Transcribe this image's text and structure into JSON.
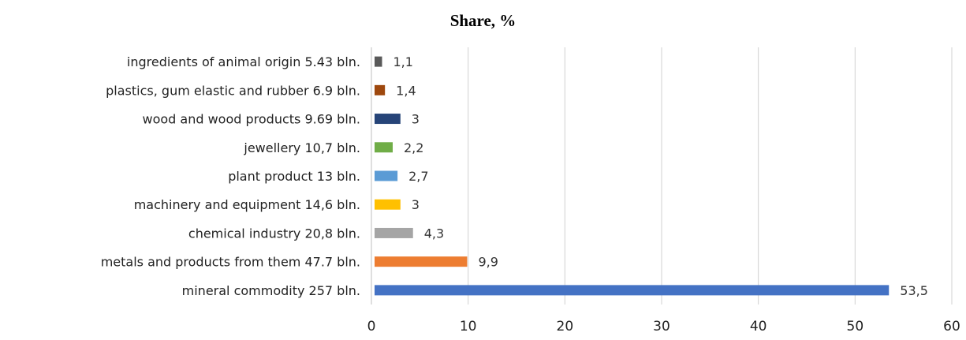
{
  "chart_data": {
    "type": "bar",
    "orientation": "horizontal",
    "title": "Share, %",
    "xlim": [
      0,
      60
    ],
    "xticks": [
      0,
      10,
      20,
      30,
      40,
      50,
      60
    ],
    "grid": "vertical",
    "categories": [
      "ingredients of animal origin 5.43 bln.",
      "plastics, gum elastic and rubber 6.9 bln.",
      "wood and wood products 9.69 bln.",
      "jewellery 10,7 bln.",
      "plant product 13 bln.",
      "machinery and equipment 14,6 bln.",
      "chemical industry 20,8 bln.",
      "metals and products from them 47.7 bln.",
      "mineral commodity 257 bln."
    ],
    "values": [
      1.1,
      1.4,
      3,
      2.2,
      2.7,
      3,
      4.3,
      9.9,
      53.5
    ],
    "value_labels": [
      "1,1",
      "1,4",
      "3",
      "2,2",
      "2,7",
      "3",
      "4,3",
      "9,9",
      "53,5"
    ],
    "colors": [
      "#595959",
      "#9e480e",
      "#264478",
      "#70ad47",
      "#5b9bd5",
      "#ffc000",
      "#a5a5a5",
      "#ed7d31",
      "#4472c4"
    ]
  }
}
